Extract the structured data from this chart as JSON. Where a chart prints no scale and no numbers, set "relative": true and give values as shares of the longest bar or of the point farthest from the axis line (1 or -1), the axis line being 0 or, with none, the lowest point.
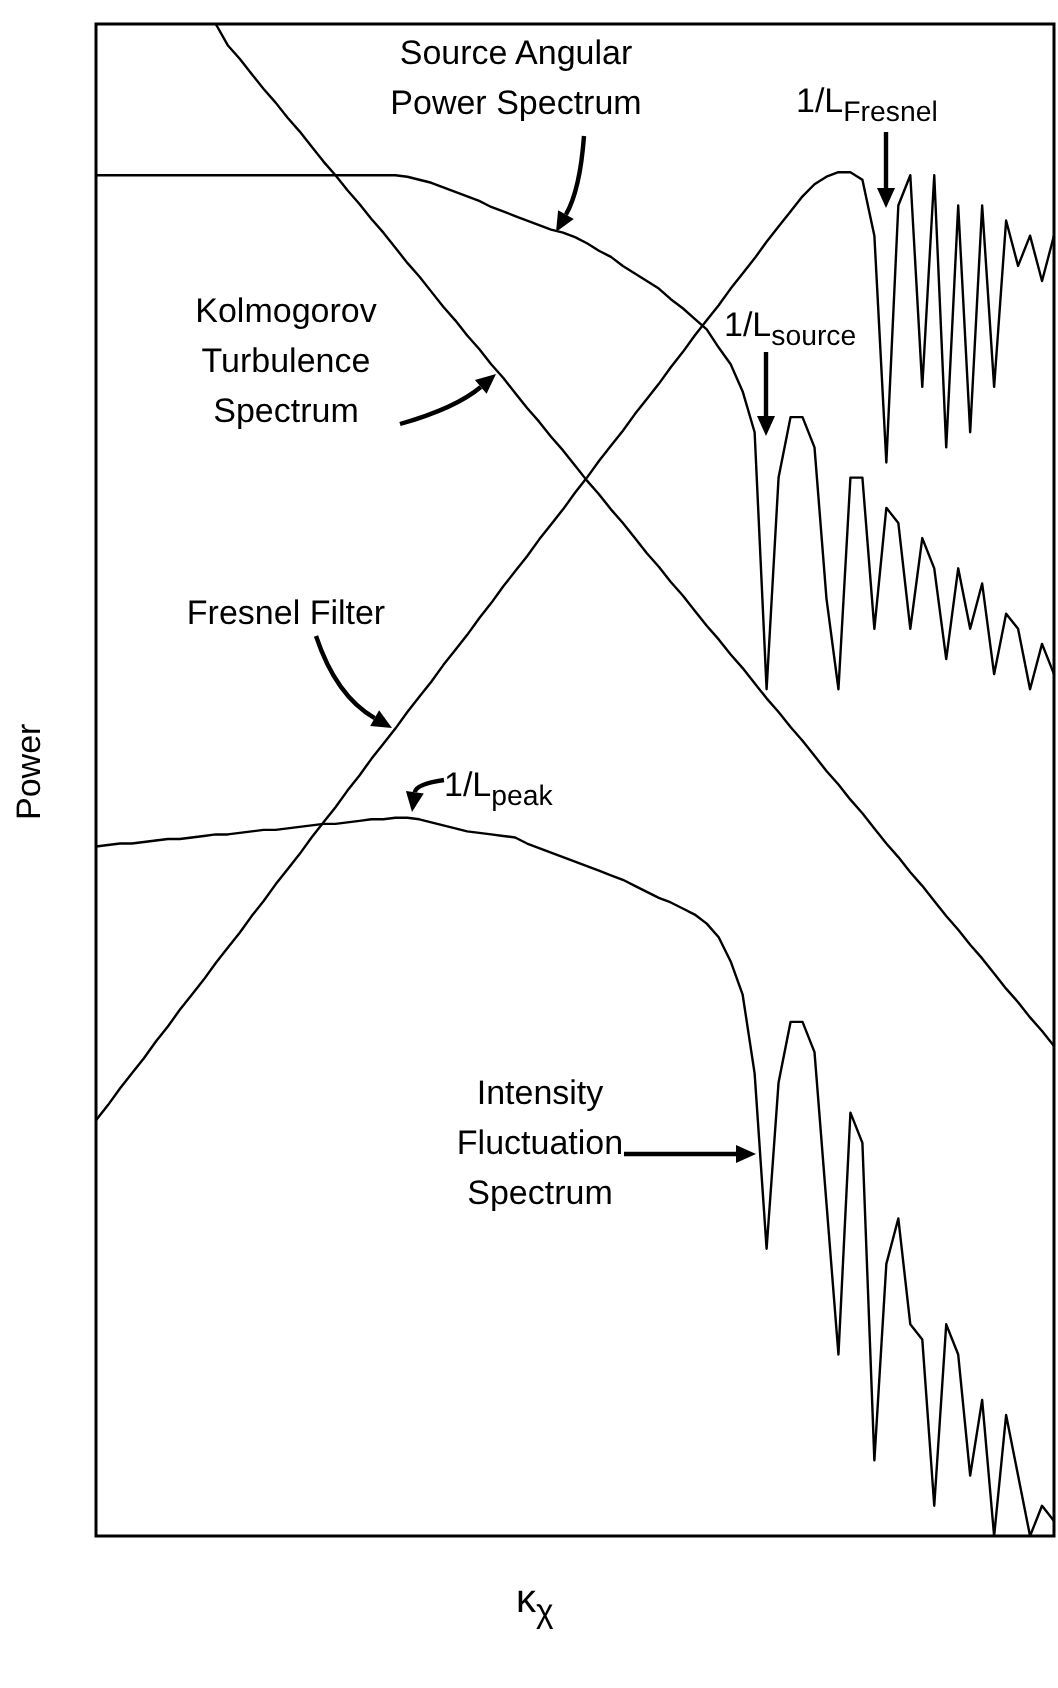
{
  "chart_data": {
    "type": "line",
    "relative": true,
    "xlabel": "κ$_{χ}$",
    "ylabel": "Power",
    "categories": [
      null,
      null,
      null,
      null,
      null,
      null,
      null,
      null,
      null,
      null,
      null,
      null,
      null,
      null,
      null,
      null,
      null,
      null,
      null,
      null,
      null,
      null,
      null,
      null,
      null,
      null,
      null,
      null,
      null,
      null,
      null,
      null,
      null,
      null,
      null,
      null,
      null,
      null,
      null,
      null,
      null,
      null,
      null,
      null,
      null,
      null,
      null,
      null,
      null,
      null,
      null,
      null,
      null,
      null,
      null,
      null,
      null,
      null,
      null,
      null,
      null,
      null,
      null,
      null,
      null,
      null,
      null,
      null,
      null,
      null,
      null,
      null,
      null,
      null,
      null,
      null,
      null,
      null,
      null,
      null,
      null
    ],
    "series": [
      {
        "name": "Source Angular Power Spectrum",
        "color": "#000000",
        "values": [
          0.9,
          0.9,
          0.9,
          0.9,
          0.9,
          0.9,
          0.9,
          0.9,
          0.9,
          0.9,
          0.9,
          0.9,
          0.9,
          0.9,
          0.9,
          0.9,
          0.9,
          0.9,
          0.9,
          0.9,
          0.9,
          0.9,
          0.9,
          0.9,
          0.9,
          0.9,
          0.899,
          0.897,
          0.895,
          0.892,
          0.889,
          0.886,
          0.883,
          0.879,
          0.876,
          0.873,
          0.87,
          0.867,
          0.864,
          0.862,
          0.859,
          0.855,
          0.85,
          0.846,
          0.84,
          0.835,
          0.83,
          0.825,
          0.818,
          0.812,
          0.805,
          0.798,
          0.786,
          0.775,
          0.757,
          0.73,
          0.56,
          0.7,
          0.74,
          0.74,
          0.72,
          0.62,
          0.56,
          0.7,
          0.7,
          0.6,
          0.68,
          0.67,
          0.6,
          0.66,
          0.64,
          0.58,
          0.64,
          0.6,
          0.63,
          0.57,
          0.61,
          0.6,
          0.56,
          0.59,
          0.57
        ]
      },
      {
        "name": "Kolmogorov Turbulence Spectrum",
        "color": "#000000",
        "values": [
          null,
          null,
          null,
          null,
          null,
          null,
          null,
          null,
          null,
          null,
          1.0,
          0.986,
          0.977,
          0.967,
          0.957,
          0.948,
          0.938,
          0.929,
          0.919,
          0.909,
          0.9,
          0.89,
          0.881,
          0.871,
          0.862,
          0.852,
          0.842,
          0.833,
          0.823,
          0.813,
          0.804,
          0.794,
          0.785,
          0.775,
          0.766,
          0.756,
          0.746,
          0.737,
          0.727,
          0.718,
          0.708,
          0.698,
          0.689,
          0.679,
          0.67,
          0.66,
          0.65,
          0.641,
          0.631,
          0.622,
          0.612,
          0.602,
          0.593,
          0.583,
          0.574,
          0.564,
          0.554,
          0.545,
          0.535,
          0.526,
          0.516,
          0.506,
          0.497,
          0.487,
          0.478,
          0.468,
          0.458,
          0.449,
          0.439,
          0.43,
          0.42,
          0.41,
          0.401,
          0.391,
          0.382,
          0.372,
          0.362,
          0.353,
          0.343,
          0.334,
          0.324
        ]
      },
      {
        "name": "Fresnel Filter",
        "color": "#000000",
        "values": [
          0.275,
          0.285,
          0.296,
          0.306,
          0.316,
          0.327,
          0.337,
          0.348,
          0.358,
          0.368,
          0.379,
          0.389,
          0.399,
          0.41,
          0.42,
          0.431,
          0.441,
          0.451,
          0.462,
          0.472,
          0.482,
          0.493,
          0.503,
          0.514,
          0.524,
          0.534,
          0.545,
          0.555,
          0.565,
          0.576,
          0.586,
          0.596,
          0.607,
          0.617,
          0.628,
          0.638,
          0.648,
          0.659,
          0.669,
          0.679,
          0.69,
          0.7,
          0.711,
          0.721,
          0.731,
          0.742,
          0.752,
          0.762,
          0.773,
          0.783,
          0.794,
          0.804,
          0.814,
          0.825,
          0.835,
          0.845,
          0.856,
          0.866,
          0.876,
          0.886,
          0.894,
          0.899,
          0.902,
          0.902,
          0.897,
          0.86,
          0.71,
          0.88,
          0.9,
          0.76,
          0.9,
          0.72,
          0.88,
          0.73,
          0.88,
          0.76,
          0.87,
          0.84,
          0.86,
          0.83,
          0.86
        ]
      },
      {
        "name": "Intensity Fluctuation Spectrum",
        "color": "#000000",
        "values": [
          0.456,
          0.457,
          0.458,
          0.458,
          0.459,
          0.46,
          0.461,
          0.461,
          0.462,
          0.463,
          0.464,
          0.464,
          0.465,
          0.466,
          0.467,
          0.467,
          0.468,
          0.469,
          0.47,
          0.471,
          0.471,
          0.472,
          0.473,
          0.474,
          0.474,
          0.475,
          0.475,
          0.474,
          0.472,
          0.47,
          0.468,
          0.466,
          0.465,
          0.464,
          0.463,
          0.462,
          0.458,
          0.455,
          0.452,
          0.449,
          0.446,
          0.443,
          0.44,
          0.437,
          0.434,
          0.43,
          0.426,
          0.422,
          0.419,
          0.415,
          0.411,
          0.405,
          0.396,
          0.38,
          0.358,
          0.306,
          0.19,
          0.3,
          0.34,
          0.34,
          0.32,
          0.22,
          0.12,
          0.28,
          0.26,
          0.05,
          0.18,
          0.21,
          0.14,
          0.13,
          0.02,
          0.14,
          0.12,
          0.04,
          0.09,
          0.0,
          0.08,
          0.04,
          0.0,
          0.02,
          0.01
        ]
      }
    ],
    "annotations": [
      "1/L$_{Fresnel}$",
      "1/L$_{source}$",
      "1/L$_{peak}$"
    ]
  }
}
